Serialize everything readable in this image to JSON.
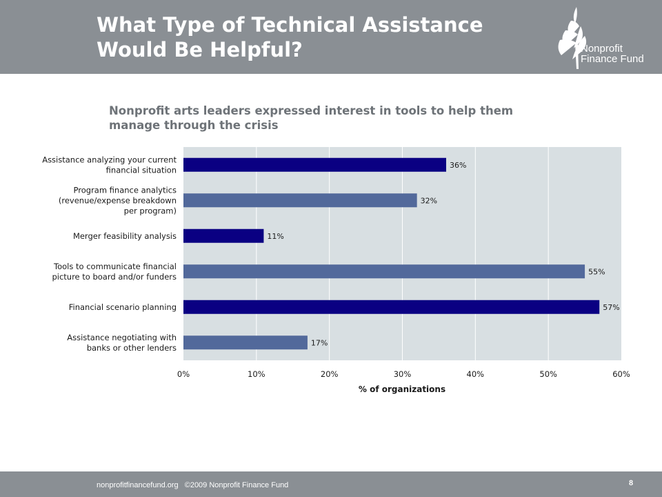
{
  "header": {
    "title_line1": "What Type of Technical Assistance",
    "title_line2": "Would Be Helpful?",
    "logo_line1": "Nonprofit",
    "logo_line2": "Finance Fund"
  },
  "subtitle": {
    "line1": "Nonprofit arts leaders expressed interest in tools to help them",
    "line2": "manage through the crisis"
  },
  "chart_data": {
    "type": "bar",
    "orientation": "horizontal",
    "categories": [
      [
        "Assistance analyzing your current",
        "financial situation"
      ],
      [
        "Program finance analytics",
        "(revenue/expense breakdown",
        "per program)"
      ],
      [
        "Merger feasibility analysis"
      ],
      [
        "Tools to communicate financial",
        "picture to board and/or funders"
      ],
      [
        "Financial scenario planning"
      ],
      [
        "Assistance negotiating with",
        "banks or other lenders"
      ]
    ],
    "values": [
      36,
      32,
      11,
      55,
      57,
      17
    ],
    "data_labels": [
      "36%",
      "32%",
      "11%",
      "55%",
      "57%",
      "17%"
    ],
    "xlim": [
      0,
      60
    ],
    "ticks": [
      0,
      10,
      20,
      30,
      40,
      50,
      60
    ],
    "tick_labels": [
      "0%",
      "10%",
      "20%",
      "30%",
      "40%",
      "50%",
      "60%"
    ],
    "xlabel": "% of organizations",
    "grid": true,
    "bar_colors": [
      "#0a0082",
      "#52699b",
      "#0a0082",
      "#52699b",
      "#0a0082",
      "#52699b"
    ],
    "plot_background": "#d8dfe2",
    "grid_color": "#ffffff"
  },
  "footer": {
    "website": "nonprofitfinancefund.org",
    "copyright": "©2009 Nonprofit Finance Fund",
    "page_number": "8"
  },
  "colors": {
    "header_bg": "#8a8f94",
    "subtitle": "#6e7378"
  }
}
